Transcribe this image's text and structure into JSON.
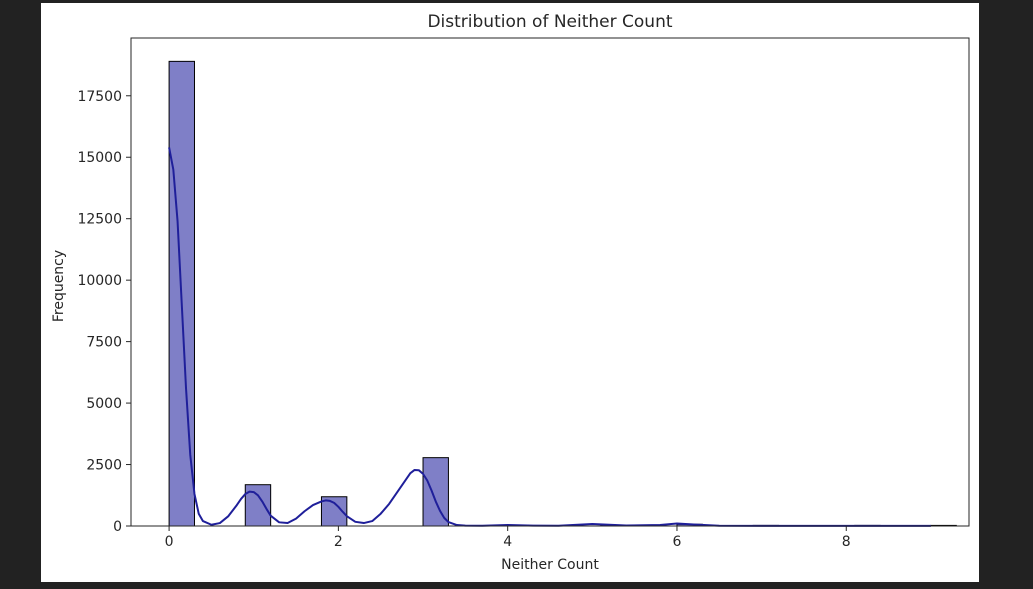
{
  "chart_data": {
    "type": "bar",
    "title": "Distribution of Neither Count",
    "xlabel": "Neither Count",
    "ylabel": "Frequency",
    "xlim": [
      -0.45,
      9.45
    ],
    "ylim": [
      0,
      19850
    ],
    "xticks": [
      0,
      2,
      4,
      6,
      8
    ],
    "yticks": [
      0,
      2500,
      5000,
      7500,
      10000,
      12500,
      15000,
      17500
    ],
    "bin_width": 0.3,
    "bars": [
      {
        "x0": 0.0,
        "x1": 0.3,
        "value": 18900
      },
      {
        "x0": 0.9,
        "x1": 1.2,
        "value": 1680
      },
      {
        "x0": 1.8,
        "x1": 2.1,
        "value": 1190
      },
      {
        "x0": 3.0,
        "x1": 3.3,
        "value": 2780
      },
      {
        "x0": 3.9,
        "x1": 4.2,
        "value": 15
      },
      {
        "x0": 5.1,
        "x1": 5.4,
        "value": 20
      },
      {
        "x0": 6.0,
        "x1": 6.3,
        "value": 70
      },
      {
        "x0": 6.9,
        "x1": 7.2,
        "value": 5
      },
      {
        "x0": 8.1,
        "x1": 8.4,
        "value": 5
      },
      {
        "x0": 9.0,
        "x1": 9.3,
        "value": 3
      }
    ],
    "kde": {
      "x": [
        0.0,
        0.05,
        0.1,
        0.15,
        0.2,
        0.25,
        0.3,
        0.35,
        0.4,
        0.5,
        0.6,
        0.7,
        0.8,
        0.85,
        0.9,
        0.95,
        1.0,
        1.05,
        1.1,
        1.15,
        1.2,
        1.3,
        1.4,
        1.5,
        1.6,
        1.7,
        1.8,
        1.85,
        1.9,
        1.95,
        2.0,
        2.05,
        2.1,
        2.2,
        2.3,
        2.4,
        2.5,
        2.6,
        2.7,
        2.8,
        2.85,
        2.9,
        2.95,
        3.0,
        3.05,
        3.1,
        3.15,
        3.2,
        3.25,
        3.3,
        3.4,
        3.5,
        3.7,
        4.0,
        4.3,
        4.6,
        5.0,
        5.4,
        5.8,
        6.0,
        6.2,
        6.5,
        7.0,
        7.5,
        8.0,
        8.5,
        9.0
      ],
      "y": [
        15400,
        14500,
        12400,
        9000,
        5600,
        2900,
        1300,
        500,
        200,
        50,
        120,
        400,
        850,
        1100,
        1300,
        1400,
        1380,
        1250,
        1000,
        700,
        420,
        150,
        120,
        300,
        600,
        850,
        1000,
        1040,
        1020,
        940,
        780,
        580,
        400,
        170,
        120,
        200,
        500,
        900,
        1400,
        1900,
        2150,
        2280,
        2270,
        2120,
        1850,
        1450,
        1000,
        620,
        330,
        160,
        40,
        15,
        10,
        40,
        15,
        10,
        80,
        20,
        40,
        100,
        60,
        10,
        5,
        5,
        5,
        5,
        3
      ]
    },
    "bar_fill": "#7f7fc7",
    "bar_edge": "#000000",
    "kde_color": "#1f1f9a",
    "grid": false,
    "legend": false
  }
}
